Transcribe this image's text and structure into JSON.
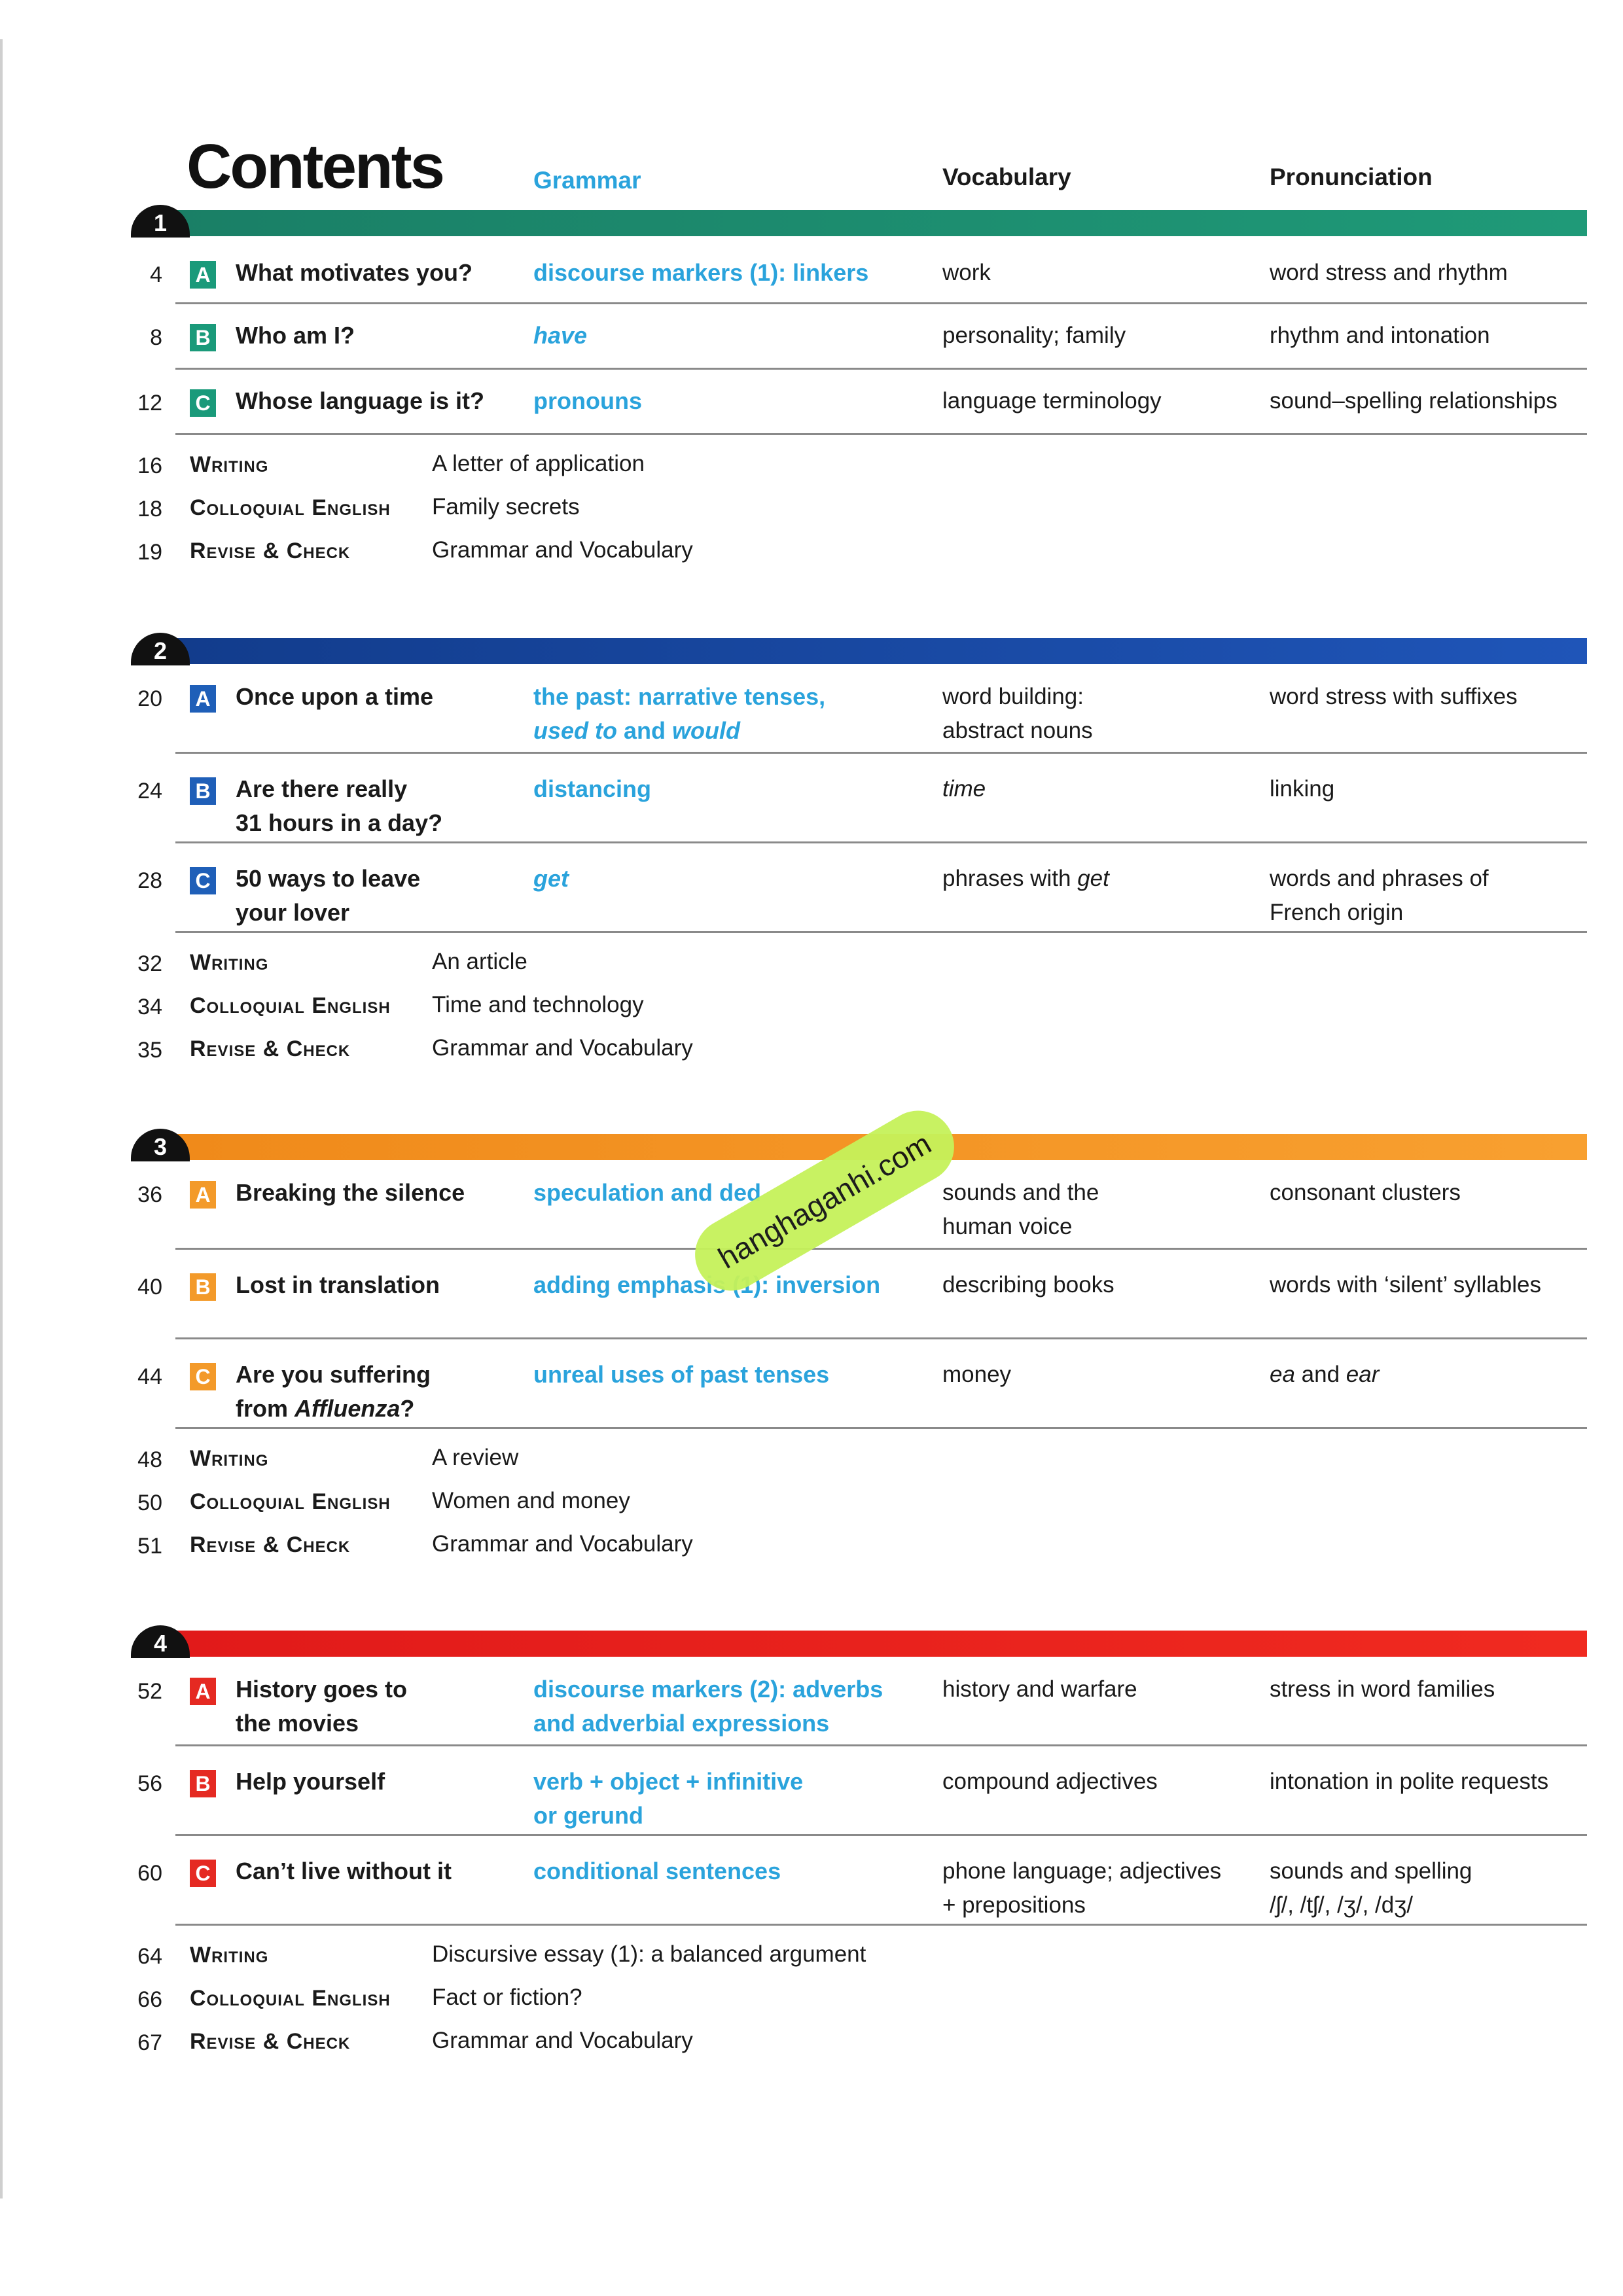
{
  "header": {
    "title": "Contents",
    "grammar": "Grammar",
    "vocabulary": "Vocabulary",
    "pronunciation": "Pronunciation"
  },
  "colors": {
    "grammar_text": "#2aa3dc"
  },
  "watermark": "hanghaganhi.com",
  "sections": [
    {
      "number": "1",
      "band_color": "linear-gradient(90deg,#1a7f66,#1f9a78)",
      "letter_color": "#1a9a7a",
      "lessons": [
        {
          "page": "4",
          "letter": "A",
          "title": [
            {
              "t": "What motivates you?"
            }
          ],
          "grammar": [
            {
              "t": "discourse markers (1): linkers"
            }
          ],
          "vocabulary": [
            {
              "t": "work"
            }
          ],
          "pronunciation": [
            {
              "t": "word stress and rhythm"
            }
          ]
        },
        {
          "page": "8",
          "letter": "B",
          "title": [
            {
              "t": "Who am I?"
            }
          ],
          "grammar": [
            {
              "t": "have",
              "i": true
            }
          ],
          "vocabulary": [
            {
              "t": "personality; family"
            }
          ],
          "pronunciation": [
            {
              "t": "rhythm and intonation"
            }
          ]
        },
        {
          "page": "12",
          "letter": "C",
          "title": [
            {
              "t": "Whose language is it?"
            }
          ],
          "grammar": [
            {
              "t": "pronouns"
            }
          ],
          "vocabulary": [
            {
              "t": "language terminology"
            }
          ],
          "pronunciation": [
            {
              "t": "sound–spelling relationships"
            }
          ]
        }
      ],
      "extras": [
        {
          "page": "16",
          "label": "Writing",
          "value": "A letter of application"
        },
        {
          "page": "18",
          "label": "Colloquial English",
          "value": "Family secrets"
        },
        {
          "page": "19",
          "label": "Revise & Check",
          "value": "Grammar and Vocabulary"
        }
      ]
    },
    {
      "number": "2",
      "band_color": "linear-gradient(90deg,#123c8c,#1f55b8)",
      "letter_color": "#1f5fb8",
      "lessons": [
        {
          "page": "20",
          "letter": "A",
          "title": [
            {
              "t": "Once upon a time"
            }
          ],
          "grammar": [
            {
              "t": "the past: narrative tenses, "
            },
            {
              "br": true
            },
            {
              "t": "used to",
              "i": true
            },
            {
              "t": " and "
            },
            {
              "t": "would",
              "i": true
            }
          ],
          "vocabulary": [
            {
              "t": "word building:"
            },
            {
              "br": true
            },
            {
              "t": "abstract nouns"
            }
          ],
          "pronunciation": [
            {
              "t": "word stress with suffixes"
            }
          ]
        },
        {
          "page": "24",
          "letter": "B",
          "title": [
            {
              "t": "Are there really"
            },
            {
              "br": true
            },
            {
              "t": "31 hours in a day?"
            }
          ],
          "grammar": [
            {
              "t": "distancing"
            }
          ],
          "vocabulary": [
            {
              "t": "time",
              "i": true
            }
          ],
          "pronunciation": [
            {
              "t": "linking"
            }
          ]
        },
        {
          "page": "28",
          "letter": "C",
          "title": [
            {
              "t": "50 ways to leave"
            },
            {
              "br": true
            },
            {
              "t": "your lover"
            }
          ],
          "grammar": [
            {
              "t": "get",
              "i": true
            }
          ],
          "vocabulary": [
            {
              "t": "phrases with "
            },
            {
              "t": "get",
              "i": true
            }
          ],
          "pronunciation": [
            {
              "t": "words and phrases of"
            },
            {
              "br": true
            },
            {
              "t": "French origin"
            }
          ]
        }
      ],
      "extras": [
        {
          "page": "32",
          "label": "Writing",
          "value": "An article"
        },
        {
          "page": "34",
          "label": "Colloquial English",
          "value": "Time and technology"
        },
        {
          "page": "35",
          "label": "Revise & Check",
          "value": "Grammar and Vocabulary"
        }
      ]
    },
    {
      "number": "3",
      "band_color": "linear-gradient(90deg,#f08a1a,#f8a030)",
      "letter_color": "#f39a2a",
      "lessons": [
        {
          "page": "36",
          "letter": "A",
          "title": [
            {
              "t": "Breaking the silence"
            }
          ],
          "grammar": [
            {
              "t": "speculation and ded"
            }
          ],
          "vocabulary": [
            {
              "t": "sounds and the"
            },
            {
              "br": true
            },
            {
              "t": "human voice"
            }
          ],
          "pronunciation": [
            {
              "t": "consonant clusters"
            }
          ]
        },
        {
          "page": "40",
          "letter": "B",
          "title": [
            {
              "t": "Lost in translation"
            }
          ],
          "grammar": [
            {
              "t": "adding emphasis (1): inversion"
            }
          ],
          "vocabulary": [
            {
              "t": "describing books"
            }
          ],
          "pronunciation": [
            {
              "t": "words with ‘silent’ syllables"
            }
          ]
        },
        {
          "page": "44",
          "letter": "C",
          "title": [
            {
              "t": "Are you suffering"
            },
            {
              "br": true
            },
            {
              "t": "from "
            },
            {
              "t": "Affluenza",
              "i": true
            },
            {
              "t": "?"
            }
          ],
          "grammar": [
            {
              "t": "unreal uses of past tenses"
            }
          ],
          "vocabulary": [
            {
              "t": "money"
            }
          ],
          "pronunciation": [
            {
              "t": "ea",
              "i": true
            },
            {
              "t": " and "
            },
            {
              "t": "ear",
              "i": true
            }
          ]
        }
      ],
      "extras": [
        {
          "page": "48",
          "label": "Writing",
          "value": "A review"
        },
        {
          "page": "50",
          "label": "Colloquial English",
          "value": "Women and money"
        },
        {
          "page": "51",
          "label": "Revise & Check",
          "value": "Grammar and Vocabulary"
        }
      ]
    },
    {
      "number": "4",
      "band_color": "linear-gradient(90deg,#e11a1a,#f02a20)",
      "letter_color": "#e52a22",
      "lessons": [
        {
          "page": "52",
          "letter": "A",
          "title": [
            {
              "t": "History goes to"
            },
            {
              "br": true
            },
            {
              "t": "the movies"
            }
          ],
          "grammar": [
            {
              "t": "discourse markers (2): adverbs"
            },
            {
              "br": true
            },
            {
              "t": "and adverbial expressions"
            }
          ],
          "vocabulary": [
            {
              "t": "history and warfare"
            }
          ],
          "pronunciation": [
            {
              "t": "stress in word families"
            }
          ]
        },
        {
          "page": "56",
          "letter": "B",
          "title": [
            {
              "t": "Help yourself"
            }
          ],
          "grammar": [
            {
              "t": "verb + object + infinitive"
            },
            {
              "br": true
            },
            {
              "t": "or gerund"
            }
          ],
          "vocabulary": [
            {
              "t": "compound adjectives"
            }
          ],
          "pronunciation": [
            {
              "t": "intonation in polite requests"
            }
          ]
        },
        {
          "page": "60",
          "letter": "C",
          "title": [
            {
              "t": "Can’t live without it"
            }
          ],
          "grammar": [
            {
              "t": "conditional sentences"
            }
          ],
          "vocabulary": [
            {
              "t": "phone language; adjectives"
            },
            {
              "br": true
            },
            {
              "t": "+ prepositions"
            }
          ],
          "pronunciation": [
            {
              "t": "sounds and spelling"
            },
            {
              "br": true
            },
            {
              "t": "/ʃ/, /tʃ/, /ʒ/, /dʒ/"
            }
          ]
        }
      ],
      "extras": [
        {
          "page": "64",
          "label": "Writing",
          "value": "Discursive essay (1): a balanced argument"
        },
        {
          "page": "66",
          "label": "Colloquial English",
          "value": "Fact or fiction?"
        },
        {
          "page": "67",
          "label": "Revise & Check",
          "value": "Grammar and Vocabulary"
        }
      ]
    }
  ]
}
